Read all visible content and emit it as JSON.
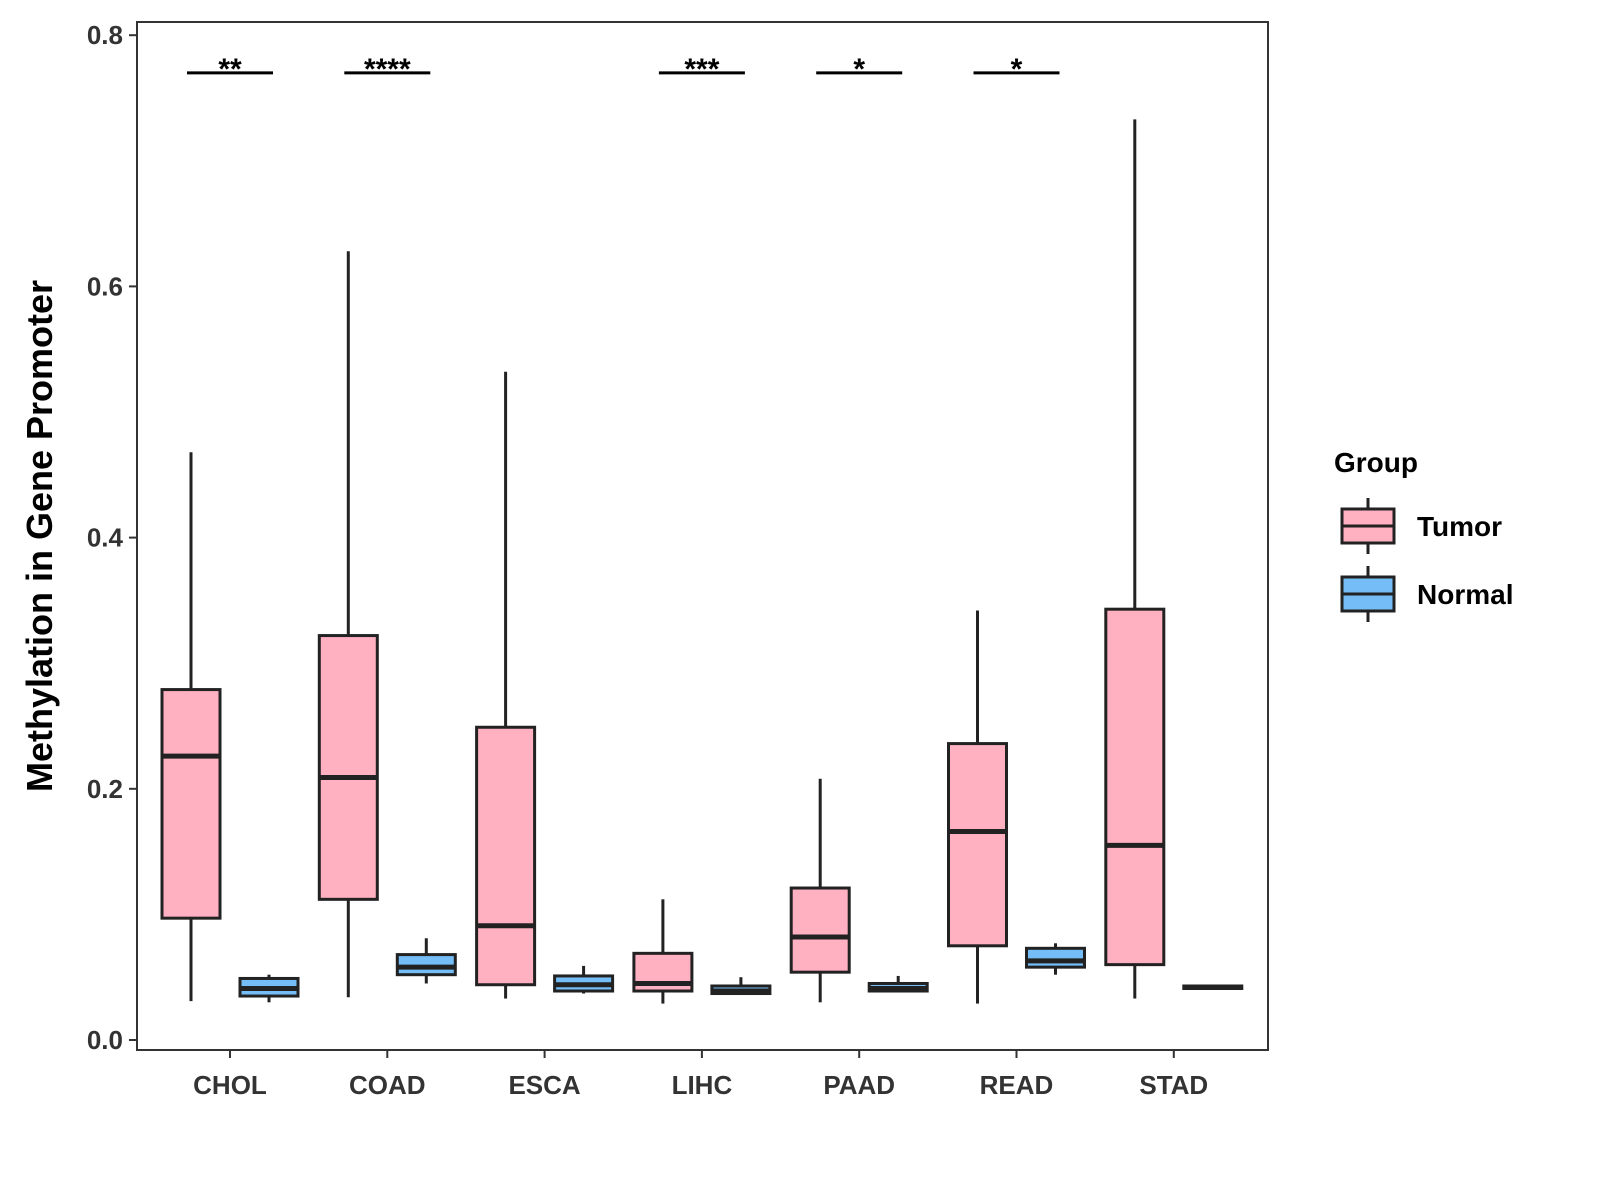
{
  "chart_data": {
    "type": "boxplot",
    "title": "",
    "xlabel": "",
    "ylabel": "Methylation in Gene Promoter",
    "ylim": [
      -0.01,
      0.81
    ],
    "yticks": [
      0.0,
      0.2,
      0.4,
      0.6,
      0.8
    ],
    "ytick_labels": [
      "0.0",
      "0.2",
      "0.4",
      "0.6",
      "0.8"
    ],
    "categories": [
      "CHOL",
      "COAD",
      "ESCA",
      "LIHC",
      "PAAD",
      "READ",
      "STAD"
    ],
    "series": [
      {
        "name": "Tumor",
        "color": "#FFB0C1",
        "boxes": [
          {
            "min": 0.031,
            "q1": 0.097,
            "median": 0.226,
            "q3": 0.279,
            "max": 0.468
          },
          {
            "min": 0.034,
            "q1": 0.112,
            "median": 0.209,
            "q3": 0.322,
            "max": 0.628
          },
          {
            "min": 0.033,
            "q1": 0.044,
            "median": 0.091,
            "q3": 0.249,
            "max": 0.532
          },
          {
            "min": 0.029,
            "q1": 0.039,
            "median": 0.045,
            "q3": 0.069,
            "max": 0.112
          },
          {
            "min": 0.03,
            "q1": 0.054,
            "median": 0.082,
            "q3": 0.121,
            "max": 0.208
          },
          {
            "min": 0.029,
            "q1": 0.075,
            "median": 0.166,
            "q3": 0.236,
            "max": 0.342
          },
          {
            "min": 0.033,
            "q1": 0.06,
            "median": 0.155,
            "q3": 0.343,
            "max": 0.733
          }
        ]
      },
      {
        "name": "Normal",
        "color": "#74BDF6",
        "boxes": [
          {
            "min": 0.03,
            "q1": 0.035,
            "median": 0.041,
            "q3": 0.049,
            "max": 0.052
          },
          {
            "min": 0.045,
            "q1": 0.052,
            "median": 0.058,
            "q3": 0.068,
            "max": 0.081
          },
          {
            "min": 0.037,
            "q1": 0.039,
            "median": 0.044,
            "q3": 0.051,
            "max": 0.059
          },
          {
            "min": 0.037,
            "q1": 0.037,
            "median": 0.039,
            "q3": 0.043,
            "max": 0.05
          },
          {
            "min": 0.039,
            "q1": 0.039,
            "median": 0.041,
            "q3": 0.045,
            "max": 0.051
          },
          {
            "min": 0.052,
            "q1": 0.058,
            "median": 0.063,
            "q3": 0.073,
            "max": 0.077
          },
          {
            "min": 0.041,
            "q1": 0.041,
            "median": 0.042,
            "q3": 0.043,
            "max": 0.043
          }
        ]
      }
    ],
    "significance": [
      {
        "category": "CHOL",
        "label": "**"
      },
      {
        "category": "COAD",
        "label": "****"
      },
      {
        "category": "ESCA",
        "label": ""
      },
      {
        "category": "LIHC",
        "label": "***"
      },
      {
        "category": "PAAD",
        "label": "*"
      },
      {
        "category": "READ",
        "label": "*"
      },
      {
        "category": "STAD",
        "label": ""
      }
    ],
    "significance_y": 0.77,
    "legend": {
      "title": "Group",
      "position": "right",
      "entries": [
        {
          "label": "Tumor",
          "color": "#FFB0C1"
        },
        {
          "label": "Normal",
          "color": "#74BDF6"
        }
      ]
    }
  }
}
